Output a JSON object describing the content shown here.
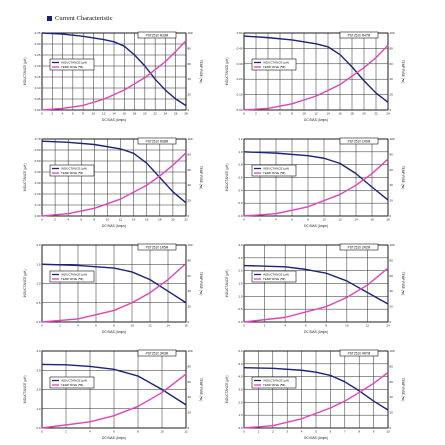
{
  "heading": "Current Characteristic",
  "colors": {
    "inductance": "#1a2478",
    "temperature": "#e043b8",
    "grid": "#2a2a2a",
    "bullet": "#1a1f6e"
  },
  "chart_data": [
    {
      "type": "line",
      "title": "PST2510 R33M",
      "xlabel": "DC BIAS (Amps)",
      "ylabel": "INDUCTANCE (µH)",
      "ylabel2": "TEMP RISE (℃)",
      "xticks": [
        "0",
        "2",
        "4",
        "6",
        "8",
        "10",
        "12",
        "14",
        "16",
        "18",
        "20",
        "22",
        "24",
        "26",
        "28"
      ],
      "yticks": [
        "0.00",
        "0.05",
        "0.10",
        "0.15",
        "0.20",
        "0.25",
        "0.30",
        "0.35"
      ],
      "y2ticks": [
        "0",
        "20",
        "40",
        "60",
        "80",
        "100"
      ],
      "legend": [
        "INDUCTANCE (µH)",
        "TEMP RISE (℃)"
      ],
      "grid": true,
      "series": [
        {
          "name": "INDUCTANCE (µH)",
          "points": [
            [
              0,
              0.35
            ],
            [
              4,
              0.345
            ],
            [
              8,
              0.335
            ],
            [
              12,
              0.32
            ],
            [
              14,
              0.31
            ],
            [
              16,
              0.29
            ],
            [
              18,
              0.25
            ],
            [
              20,
              0.2
            ],
            [
              22,
              0.14
            ],
            [
              24,
              0.09
            ],
            [
              26,
              0.05
            ],
            [
              28,
              0.02
            ]
          ]
        },
        {
          "name": "TEMP RISE (℃)",
          "points": [
            [
              0,
              0
            ],
            [
              4,
              2
            ],
            [
              8,
              6
            ],
            [
              12,
              14
            ],
            [
              16,
              26
            ],
            [
              20,
              42
            ],
            [
              24,
              63
            ],
            [
              26,
              76
            ],
            [
              28,
              90
            ]
          ]
        }
      ]
    },
    {
      "type": "line",
      "title": "PST2510 R47M",
      "xlabel": "DC BIAS (Amps)",
      "ylabel": "INDUCTANCE (µH)",
      "ylabel2": "TEMP RISE (℃)",
      "xticks": [
        "0",
        "2",
        "4",
        "6",
        "8",
        "10",
        "12",
        "14",
        "16",
        "18",
        "20",
        "22",
        "24"
      ],
      "yticks": [
        "0.00",
        "0.10",
        "0.20",
        "0.30",
        "0.40",
        "0.50"
      ],
      "y2ticks": [
        "0",
        "20",
        "40",
        "60",
        "80",
        "100"
      ],
      "legend": [
        "INDUCTANCE (µH)",
        "TEMP RISE (℃)"
      ],
      "grid": true,
      "series": [
        {
          "name": "INDUCTANCE (µH)",
          "points": [
            [
              0,
              0.48
            ],
            [
              4,
              0.47
            ],
            [
              8,
              0.455
            ],
            [
              12,
              0.43
            ],
            [
              14,
              0.41
            ],
            [
              16,
              0.36
            ],
            [
              18,
              0.28
            ],
            [
              20,
              0.19
            ],
            [
              22,
              0.11
            ],
            [
              24,
              0.05
            ]
          ]
        },
        {
          "name": "TEMP RISE (℃)",
          "points": [
            [
              0,
              0
            ],
            [
              4,
              2
            ],
            [
              8,
              8
            ],
            [
              12,
              18
            ],
            [
              16,
              33
            ],
            [
              20,
              55
            ],
            [
              22,
              68
            ],
            [
              24,
              84
            ]
          ]
        }
      ]
    },
    {
      "type": "line",
      "title": "PST2510 R68M",
      "xlabel": "DC BIAS (Amps)",
      "ylabel": "INDUCTANCE (µH)",
      "ylabel2": "TEMP RISE (℃)",
      "xticks": [
        "0",
        "2",
        "4",
        "6",
        "8",
        "10",
        "12",
        "14",
        "16",
        "18",
        "20",
        "22"
      ],
      "yticks": [
        "0.00",
        "0.10",
        "0.20",
        "0.30",
        "0.40",
        "0.50",
        "0.60",
        "0.70"
      ],
      "y2ticks": [
        "0",
        "20",
        "40",
        "60",
        "80",
        "100"
      ],
      "legend": [
        "INDUCTANCE (µH)",
        "TEMP RISE (℃)"
      ],
      "grid": true,
      "series": [
        {
          "name": "INDUCTANCE (µH)",
          "points": [
            [
              0,
              0.68
            ],
            [
              4,
              0.67
            ],
            [
              8,
              0.65
            ],
            [
              12,
              0.61
            ],
            [
              14,
              0.57
            ],
            [
              16,
              0.48
            ],
            [
              18,
              0.35
            ],
            [
              20,
              0.22
            ],
            [
              22,
              0.12
            ]
          ]
        },
        {
          "name": "TEMP RISE (℃)",
          "points": [
            [
              0,
              0
            ],
            [
              4,
              3
            ],
            [
              8,
              10
            ],
            [
              12,
              22
            ],
            [
              16,
              40
            ],
            [
              18,
              52
            ],
            [
              20,
              66
            ],
            [
              22,
              82
            ]
          ]
        }
      ]
    },
    {
      "type": "line",
      "title": "PST2510 1R0M",
      "xlabel": "DC BIAS (Amps)",
      "ylabel": "INDUCTANCE (µH)",
      "ylabel2": "TEMP RISE (℃)",
      "xticks": [
        "0",
        "2",
        "4",
        "6",
        "8",
        "10",
        "12",
        "14",
        "16",
        "18"
      ],
      "yticks": [
        "0.0",
        "0.2",
        "0.4",
        "0.6",
        "0.8",
        "1.0",
        "1.2"
      ],
      "y2ticks": [
        "0",
        "20",
        "40",
        "60",
        "80",
        "100"
      ],
      "legend": [
        "INDUCTANCE (µH)",
        "TEMP RISE (℃)"
      ],
      "grid": true,
      "series": [
        {
          "name": "INDUCTANCE (µH)",
          "points": [
            [
              0,
              1.0
            ],
            [
              4,
              0.98
            ],
            [
              8,
              0.94
            ],
            [
              10,
              0.9
            ],
            [
              12,
              0.82
            ],
            [
              14,
              0.66
            ],
            [
              16,
              0.45
            ],
            [
              18,
              0.25
            ]
          ]
        },
        {
          "name": "TEMP RISE (℃)",
          "points": [
            [
              0,
              0
            ],
            [
              4,
              3
            ],
            [
              8,
              12
            ],
            [
              12,
              28
            ],
            [
              14,
              40
            ],
            [
              16,
              55
            ],
            [
              18,
              74
            ]
          ]
        }
      ]
    },
    {
      "type": "line",
      "title": "PST2510 1R5M",
      "xlabel": "DC BIAS (Amps)",
      "ylabel": "INDUCTANCE (µH)",
      "ylabel2": "TEMP RISE (℃)",
      "xticks": [
        "0",
        "2",
        "4",
        "6",
        "8",
        "10",
        "12",
        "14",
        "16"
      ],
      "yticks": [
        "0.0",
        "0.5",
        "1.0",
        "1.5",
        "2.0"
      ],
      "y2ticks": [
        "0",
        "20",
        "40",
        "60",
        "80",
        "100"
      ],
      "legend": [
        "INDUCTANCE (µH)",
        "TEMP RISE (℃)"
      ],
      "grid": true,
      "series": [
        {
          "name": "INDUCTANCE (µH)",
          "points": [
            [
              0,
              1.5
            ],
            [
              4,
              1.47
            ],
            [
              8,
              1.4
            ],
            [
              10,
              1.3
            ],
            [
              12,
              1.1
            ],
            [
              14,
              0.8
            ],
            [
              16,
              0.5
            ]
          ]
        },
        {
          "name": "TEMP RISE (℃)",
          "points": [
            [
              0,
              0
            ],
            [
              4,
              4
            ],
            [
              8,
              15
            ],
            [
              10,
              25
            ],
            [
              12,
              38
            ],
            [
              14,
              55
            ],
            [
              16,
              76
            ]
          ]
        }
      ]
    },
    {
      "type": "line",
      "title": "PST2510 2R2M",
      "xlabel": "DC BIAS (Amps)",
      "ylabel": "INDUCTANCE (µH)",
      "ylabel2": "TEMP RISE (℃)",
      "xticks": [
        "0",
        "2",
        "4",
        "6",
        "8",
        "10",
        "12",
        "14"
      ],
      "yticks": [
        "0.0",
        "0.5",
        "1.0",
        "1.5",
        "2.0",
        "2.5",
        "3.0"
      ],
      "y2ticks": [
        "0",
        "20",
        "40",
        "60",
        "80",
        "100"
      ],
      "legend": [
        "INDUCTANCE (µH)",
        "TEMP RISE (℃)"
      ],
      "grid": true,
      "series": [
        {
          "name": "INDUCTANCE (µH)",
          "points": [
            [
              0,
              2.2
            ],
            [
              4,
              2.15
            ],
            [
              6,
              2.05
            ],
            [
              8,
              1.9
            ],
            [
              10,
              1.6
            ],
            [
              12,
              1.15
            ],
            [
              14,
              0.7
            ]
          ]
        },
        {
          "name": "TEMP RISE (℃)",
          "points": [
            [
              0,
              0
            ],
            [
              4,
              6
            ],
            [
              8,
              20
            ],
            [
              10,
              32
            ],
            [
              12,
              48
            ],
            [
              14,
              70
            ]
          ]
        }
      ]
    },
    {
      "type": "line",
      "title": "PST2510 3R3M",
      "xlabel": "DC BIAS (Amps)",
      "ylabel": "INDUCTANCE (µH)",
      "ylabel2": "TEMP RISE (℃)",
      "xticks": [
        "0",
        "2",
        "4",
        "6",
        "8",
        "10",
        "12"
      ],
      "yticks": [
        "0.0",
        "1.0",
        "2.0",
        "3.0",
        "4.0"
      ],
      "y2ticks": [
        "0",
        "20",
        "40",
        "60",
        "80",
        "100"
      ],
      "legend": [
        "INDUCTANCE (µH)",
        "TEMP RISE (℃)"
      ],
      "grid": true,
      "series": [
        {
          "name": "INDUCTANCE (µH)",
          "points": [
            [
              0,
              3.3
            ],
            [
              2,
              3.28
            ],
            [
              4,
              3.2
            ],
            [
              6,
              3.05
            ],
            [
              8,
              2.7
            ],
            [
              10,
              2.0
            ],
            [
              12,
              1.2
            ]
          ]
        },
        {
          "name": "TEMP RISE (℃)",
          "points": [
            [
              0,
              0
            ],
            [
              4,
              8
            ],
            [
              6,
              16
            ],
            [
              8,
              28
            ],
            [
              10,
              46
            ],
            [
              12,
              70
            ]
          ]
        }
      ]
    },
    {
      "type": "line",
      "title": "PST2510 4R7M",
      "xlabel": "DC BIAS (Amps)",
      "ylabel": "INDUCTANCE (µH)",
      "ylabel2": "TEMP RISE (℃)",
      "xticks": [
        "0",
        "1",
        "2",
        "3",
        "4",
        "5",
        "6",
        "7",
        "8",
        "9",
        "10"
      ],
      "yticks": [
        "0.0",
        "1.0",
        "2.0",
        "3.0",
        "4.0",
        "5.0",
        "6.0"
      ],
      "y2ticks": [
        "0",
        "20",
        "40",
        "60",
        "80",
        "100"
      ],
      "legend": [
        "INDUCTANCE (µH)",
        "TEMP RISE (℃)"
      ],
      "grid": true,
      "series": [
        {
          "name": "INDUCTANCE (µH)",
          "points": [
            [
              0,
              4.7
            ],
            [
              2,
              4.65
            ],
            [
              4,
              4.5
            ],
            [
              5,
              4.35
            ],
            [
              6,
              4.1
            ],
            [
              7,
              3.6
            ],
            [
              8,
              2.9
            ],
            [
              9,
              2.1
            ],
            [
              10,
              1.4
            ]
          ]
        },
        {
          "name": "TEMP RISE (℃)",
          "points": [
            [
              0,
              0
            ],
            [
              2,
              3
            ],
            [
              4,
              12
            ],
            [
              6,
              26
            ],
            [
              7,
              35
            ],
            [
              8,
              46
            ],
            [
              9,
              58
            ],
            [
              10,
              72
            ]
          ]
        }
      ]
    }
  ]
}
